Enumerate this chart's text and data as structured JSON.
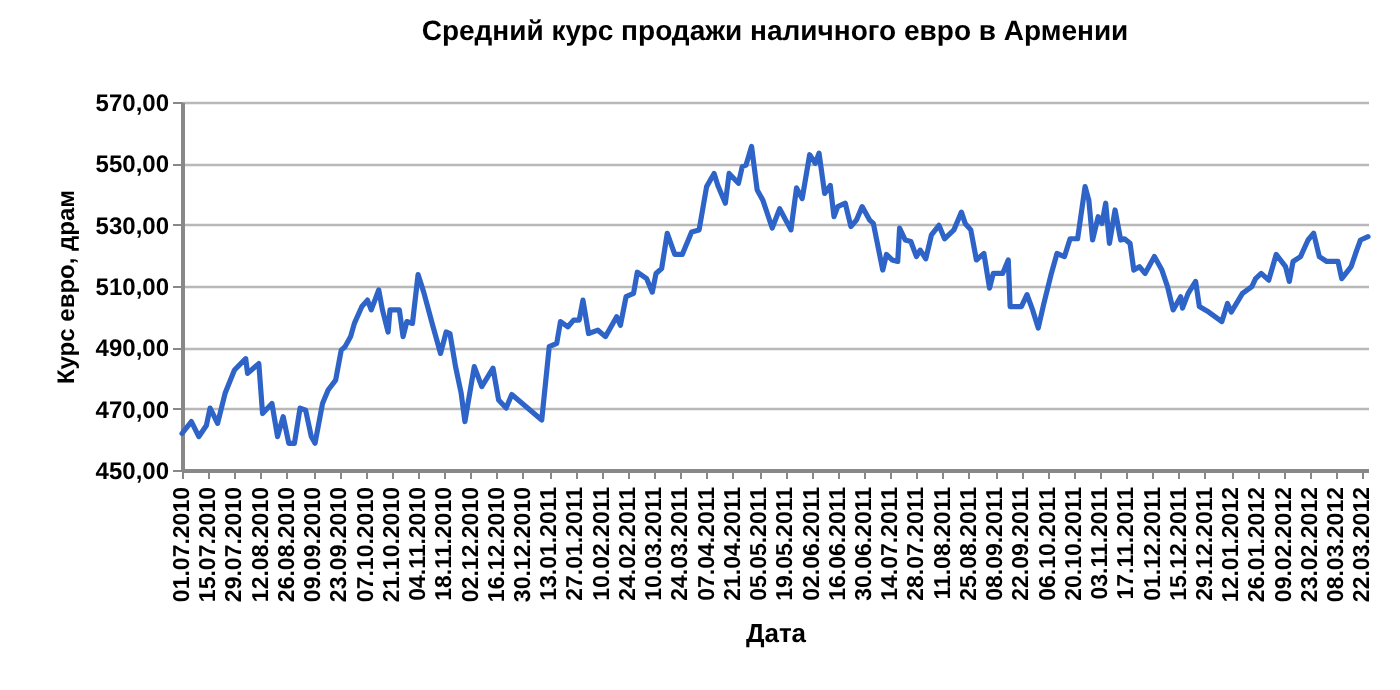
{
  "chart_data": {
    "type": "line",
    "title": "Средний курс продажи  наличного евро в Армении",
    "xlabel": "Дата",
    "ylabel": "Курс евро, драм",
    "x": [
      "2010-07-01",
      "2010-07-06",
      "2010-07-10",
      "2010-07-14",
      "2010-07-16",
      "2010-07-20",
      "2010-07-24",
      "2010-07-29",
      "2010-08-04",
      "2010-08-05",
      "2010-08-11",
      "2010-08-13",
      "2010-08-18",
      "2010-08-21",
      "2010-08-24",
      "2010-08-27",
      "2010-08-30",
      "2010-09-02",
      "2010-09-05",
      "2010-09-08",
      "2010-09-10",
      "2010-09-14",
      "2010-09-17",
      "2010-09-21",
      "2010-09-24",
      "2010-09-26",
      "2010-09-29",
      "2010-10-01",
      "2010-10-05",
      "2010-10-08",
      "2010-10-10",
      "2010-10-14",
      "2010-10-16",
      "2010-10-19",
      "2010-10-20",
      "2010-10-25",
      "2010-10-27",
      "2010-10-29",
      "2010-11-01",
      "2010-11-04",
      "2010-11-07",
      "2010-11-12",
      "2010-11-16",
      "2010-11-19",
      "2010-11-21",
      "2010-11-24",
      "2010-11-27",
      "2010-11-29",
      "2010-12-04",
      "2010-12-08",
      "2010-12-14",
      "2010-12-17",
      "2010-12-21",
      "2010-12-24",
      "2011-01-09",
      "2011-01-13",
      "2011-01-17",
      "2011-01-19",
      "2011-01-23",
      "2011-01-26",
      "2011-01-29",
      "2011-01-31",
      "2011-02-03",
      "2011-02-08",
      "2011-02-12",
      "2011-02-18",
      "2011-02-20",
      "2011-02-23",
      "2011-02-27",
      "2011-03-01",
      "2011-03-06",
      "2011-03-09",
      "2011-03-11",
      "2011-03-14",
      "2011-03-17",
      "2011-03-21",
      "2011-03-25",
      "2011-03-30",
      "2011-04-03",
      "2011-04-07",
      "2011-04-11",
      "2011-04-13",
      "2011-04-17",
      "2011-04-19",
      "2011-04-24",
      "2011-04-26",
      "2011-04-28",
      "2011-05-01",
      "2011-05-04",
      "2011-05-07",
      "2011-05-12",
      "2011-05-16",
      "2011-05-22",
      "2011-05-25",
      "2011-05-28",
      "2011-06-01",
      "2011-06-04",
      "2011-06-06",
      "2011-06-09",
      "2011-06-12",
      "2011-06-14",
      "2011-06-16",
      "2011-06-20",
      "2011-06-23",
      "2011-06-26",
      "2011-06-29",
      "2011-07-03",
      "2011-07-05",
      "2011-07-10",
      "2011-07-12",
      "2011-07-15",
      "2011-07-18",
      "2011-07-19",
      "2011-07-22",
      "2011-07-25",
      "2011-07-28",
      "2011-07-30",
      "2011-08-02",
      "2011-08-05",
      "2011-08-09",
      "2011-08-12",
      "2011-08-17",
      "2011-08-21",
      "2011-08-23",
      "2011-08-26",
      "2011-08-29",
      "2011-09-02",
      "2011-09-05",
      "2011-09-07",
      "2011-09-12",
      "2011-09-15",
      "2011-09-16",
      "2011-09-22",
      "2011-09-25",
      "2011-09-28",
      "2011-10-01",
      "2011-10-04",
      "2011-10-08",
      "2011-10-11",
      "2011-10-15",
      "2011-10-18",
      "2011-10-22",
      "2011-10-26",
      "2011-10-28",
      "2011-10-30",
      "2011-11-02",
      "2011-11-04",
      "2011-11-06",
      "2011-11-08",
      "2011-11-11",
      "2011-11-14",
      "2011-11-16",
      "2011-11-19",
      "2011-11-21",
      "2011-11-24",
      "2011-11-27",
      "2011-11-29",
      "2011-12-02",
      "2011-12-06",
      "2011-12-09",
      "2011-12-12",
      "2011-12-16",
      "2011-12-17",
      "2011-12-20",
      "2011-12-24",
      "2011-12-26",
      "2011-12-31",
      "2012-01-07",
      "2012-01-10",
      "2012-01-12",
      "2012-01-18",
      "2012-01-23",
      "2012-01-25",
      "2012-01-28",
      "2012-02-01",
      "2012-02-05",
      "2012-02-10",
      "2012-02-12",
      "2012-02-14",
      "2012-02-18",
      "2012-02-22",
      "2012-02-25",
      "2012-02-28",
      "2012-03-03",
      "2012-03-09",
      "2012-03-11",
      "2012-03-16",
      "2012-03-19",
      "2012-03-21",
      "2012-03-25"
    ],
    "series": [
      {
        "color": "#2e64c8",
        "values": [
          461.9,
          465.8,
          460.9,
          464.5,
          470.2,
          465.2,
          475,
          482.6,
          486.3,
          481.5,
          484.7,
          468.4,
          471.7,
          460.9,
          467.4,
          458.7,
          458.7,
          470.2,
          469.5,
          460.9,
          458.7,
          471.7,
          476.1,
          479.3,
          489.1,
          490.2,
          493.5,
          497.8,
          503.3,
          505.4,
          502.2,
          508.7,
          502.2,
          495,
          502.2,
          502.2,
          493.5,
          498.4,
          497.8,
          513.7,
          508,
          496.7,
          488,
          495,
          494.5,
          483.7,
          475,
          465.8,
          483.7,
          477.2,
          483.2,
          472.8,
          470.2,
          474.6,
          466.3,
          490.2,
          491.3,
          498.4,
          496.7,
          498.9,
          498.9,
          505.4,
          494.5,
          495.6,
          493.5,
          500,
          497.2,
          506.5,
          507.6,
          514.5,
          512.4,
          508,
          514.1,
          515.7,
          527.2,
          520.3,
          520.3,
          527.6,
          528.3,
          542.4,
          546.7,
          542.8,
          537,
          546.7,
          543.5,
          548.9,
          549.4,
          555.5,
          541.3,
          538,
          528.9,
          535.2,
          528.3,
          542,
          538.5,
          552.8,
          550,
          553.3,
          540.2,
          542.8,
          532.6,
          535.9,
          537,
          529.4,
          531.5,
          535.9,
          531.5,
          530.4,
          515.2,
          520.3,
          518.5,
          518,
          528.9,
          525,
          524.5,
          519.6,
          521.7,
          518.9,
          526.7,
          529.8,
          525.4,
          528.3,
          534.1,
          530.4,
          528.3,
          518.5,
          520.6,
          509.3,
          514.1,
          514.1,
          518.5,
          503.3,
          503.3,
          507.2,
          502.2,
          496.3,
          504.3,
          514.1,
          520.6,
          519.6,
          525.4,
          525.4,
          542.4,
          538,
          525,
          532.6,
          530.4,
          537,
          523.9,
          534.8,
          525,
          525.4,
          523.9,
          515.2,
          516.3,
          514.1,
          516.3,
          519.6,
          515.2,
          509.8,
          502.2,
          506.5,
          502.8,
          507.6,
          511.5,
          503.3,
          501.5,
          498.4,
          504.3,
          501.5,
          507.6,
          509.8,
          512.4,
          514.1,
          511.9,
          520.3,
          516.3,
          511.5,
          518,
          519.6,
          525,
          527.2,
          519.6,
          518,
          518,
          512.4,
          516.3,
          521.7,
          525,
          526.1
        ]
      }
    ],
    "xlim": [
      "2010-07-01",
      "2012-03-25"
    ],
    "xticks": [
      {
        "value": "2010-07-01",
        "label": "01.07.2010"
      },
      {
        "value": "2010-07-15",
        "label": "15.07.2010"
      },
      {
        "value": "2010-07-29",
        "label": "29.07.2010"
      },
      {
        "value": "2010-08-12",
        "label": "12.08.2010"
      },
      {
        "value": "2010-08-26",
        "label": "26.08.2010"
      },
      {
        "value": "2010-09-09",
        "label": "09.09.2010"
      },
      {
        "value": "2010-09-23",
        "label": "23.09.2010"
      },
      {
        "value": "2010-10-07",
        "label": "07.10.2010"
      },
      {
        "value": "2010-10-21",
        "label": "21.10.2010"
      },
      {
        "value": "2010-11-04",
        "label": "04.11.2010"
      },
      {
        "value": "2010-11-18",
        "label": "18.11.2010"
      },
      {
        "value": "2010-12-02",
        "label": "02.12.2010"
      },
      {
        "value": "2010-12-16",
        "label": "16.12.2010"
      },
      {
        "value": "2010-12-30",
        "label": "30.12.2010"
      },
      {
        "value": "2011-01-13",
        "label": "13.01.2011"
      },
      {
        "value": "2011-01-27",
        "label": "27.01.2011"
      },
      {
        "value": "2011-02-10",
        "label": "10.02.2011"
      },
      {
        "value": "2011-02-24",
        "label": "24.02.2011"
      },
      {
        "value": "2011-03-10",
        "label": "10.03.2011"
      },
      {
        "value": "2011-03-24",
        "label": "24.03.2011"
      },
      {
        "value": "2011-04-07",
        "label": "07.04.2011"
      },
      {
        "value": "2011-04-21",
        "label": "21.04.2011"
      },
      {
        "value": "2011-05-05",
        "label": "05.05.2011"
      },
      {
        "value": "2011-05-19",
        "label": "19.05.2011"
      },
      {
        "value": "2011-06-02",
        "label": "02.06.2011"
      },
      {
        "value": "2011-06-16",
        "label": "16.06.2011"
      },
      {
        "value": "2011-06-30",
        "label": "30.06.2011"
      },
      {
        "value": "2011-07-14",
        "label": "14.07.2011"
      },
      {
        "value": "2011-07-28",
        "label": "28.07.2011"
      },
      {
        "value": "2011-08-11",
        "label": "11.08.2011"
      },
      {
        "value": "2011-08-25",
        "label": "25.08.2011"
      },
      {
        "value": "2011-09-08",
        "label": "08.09.2011"
      },
      {
        "value": "2011-09-22",
        "label": "22.09.2011"
      },
      {
        "value": "2011-10-06",
        "label": "06.10.2011"
      },
      {
        "value": "2011-10-20",
        "label": "20.10.2011"
      },
      {
        "value": "2011-11-03",
        "label": "03.11.2011"
      },
      {
        "value": "2011-11-17",
        "label": "17.11.2011"
      },
      {
        "value": "2011-12-01",
        "label": "01.12.2011"
      },
      {
        "value": "2011-12-15",
        "label": "15.12.2011"
      },
      {
        "value": "2011-12-29",
        "label": "29.12.2011"
      },
      {
        "value": "2012-01-12",
        "label": "12.01.2012"
      },
      {
        "value": "2012-01-26",
        "label": "26.01.2012"
      },
      {
        "value": "2012-02-09",
        "label": "09.02.2012"
      },
      {
        "value": "2012-02-23",
        "label": "23.02.2012"
      },
      {
        "value": "2012-03-08",
        "label": "08.03.2012"
      },
      {
        "value": "2012-03-22",
        "label": "22.03.2012"
      }
    ],
    "ylim": [
      450,
      570
    ],
    "yticks": [
      {
        "value": 450,
        "label": "450,00"
      },
      {
        "value": 470,
        "label": "470,00"
      },
      {
        "value": 490,
        "label": "490,00"
      },
      {
        "value": 510,
        "label": "510,00"
      },
      {
        "value": 530,
        "label": "530,00"
      },
      {
        "value": 550,
        "label": "550,00"
      },
      {
        "value": 570,
        "label": "570,00"
      }
    ],
    "grid": "y",
    "marker": "none",
    "line_style": "solid"
  }
}
